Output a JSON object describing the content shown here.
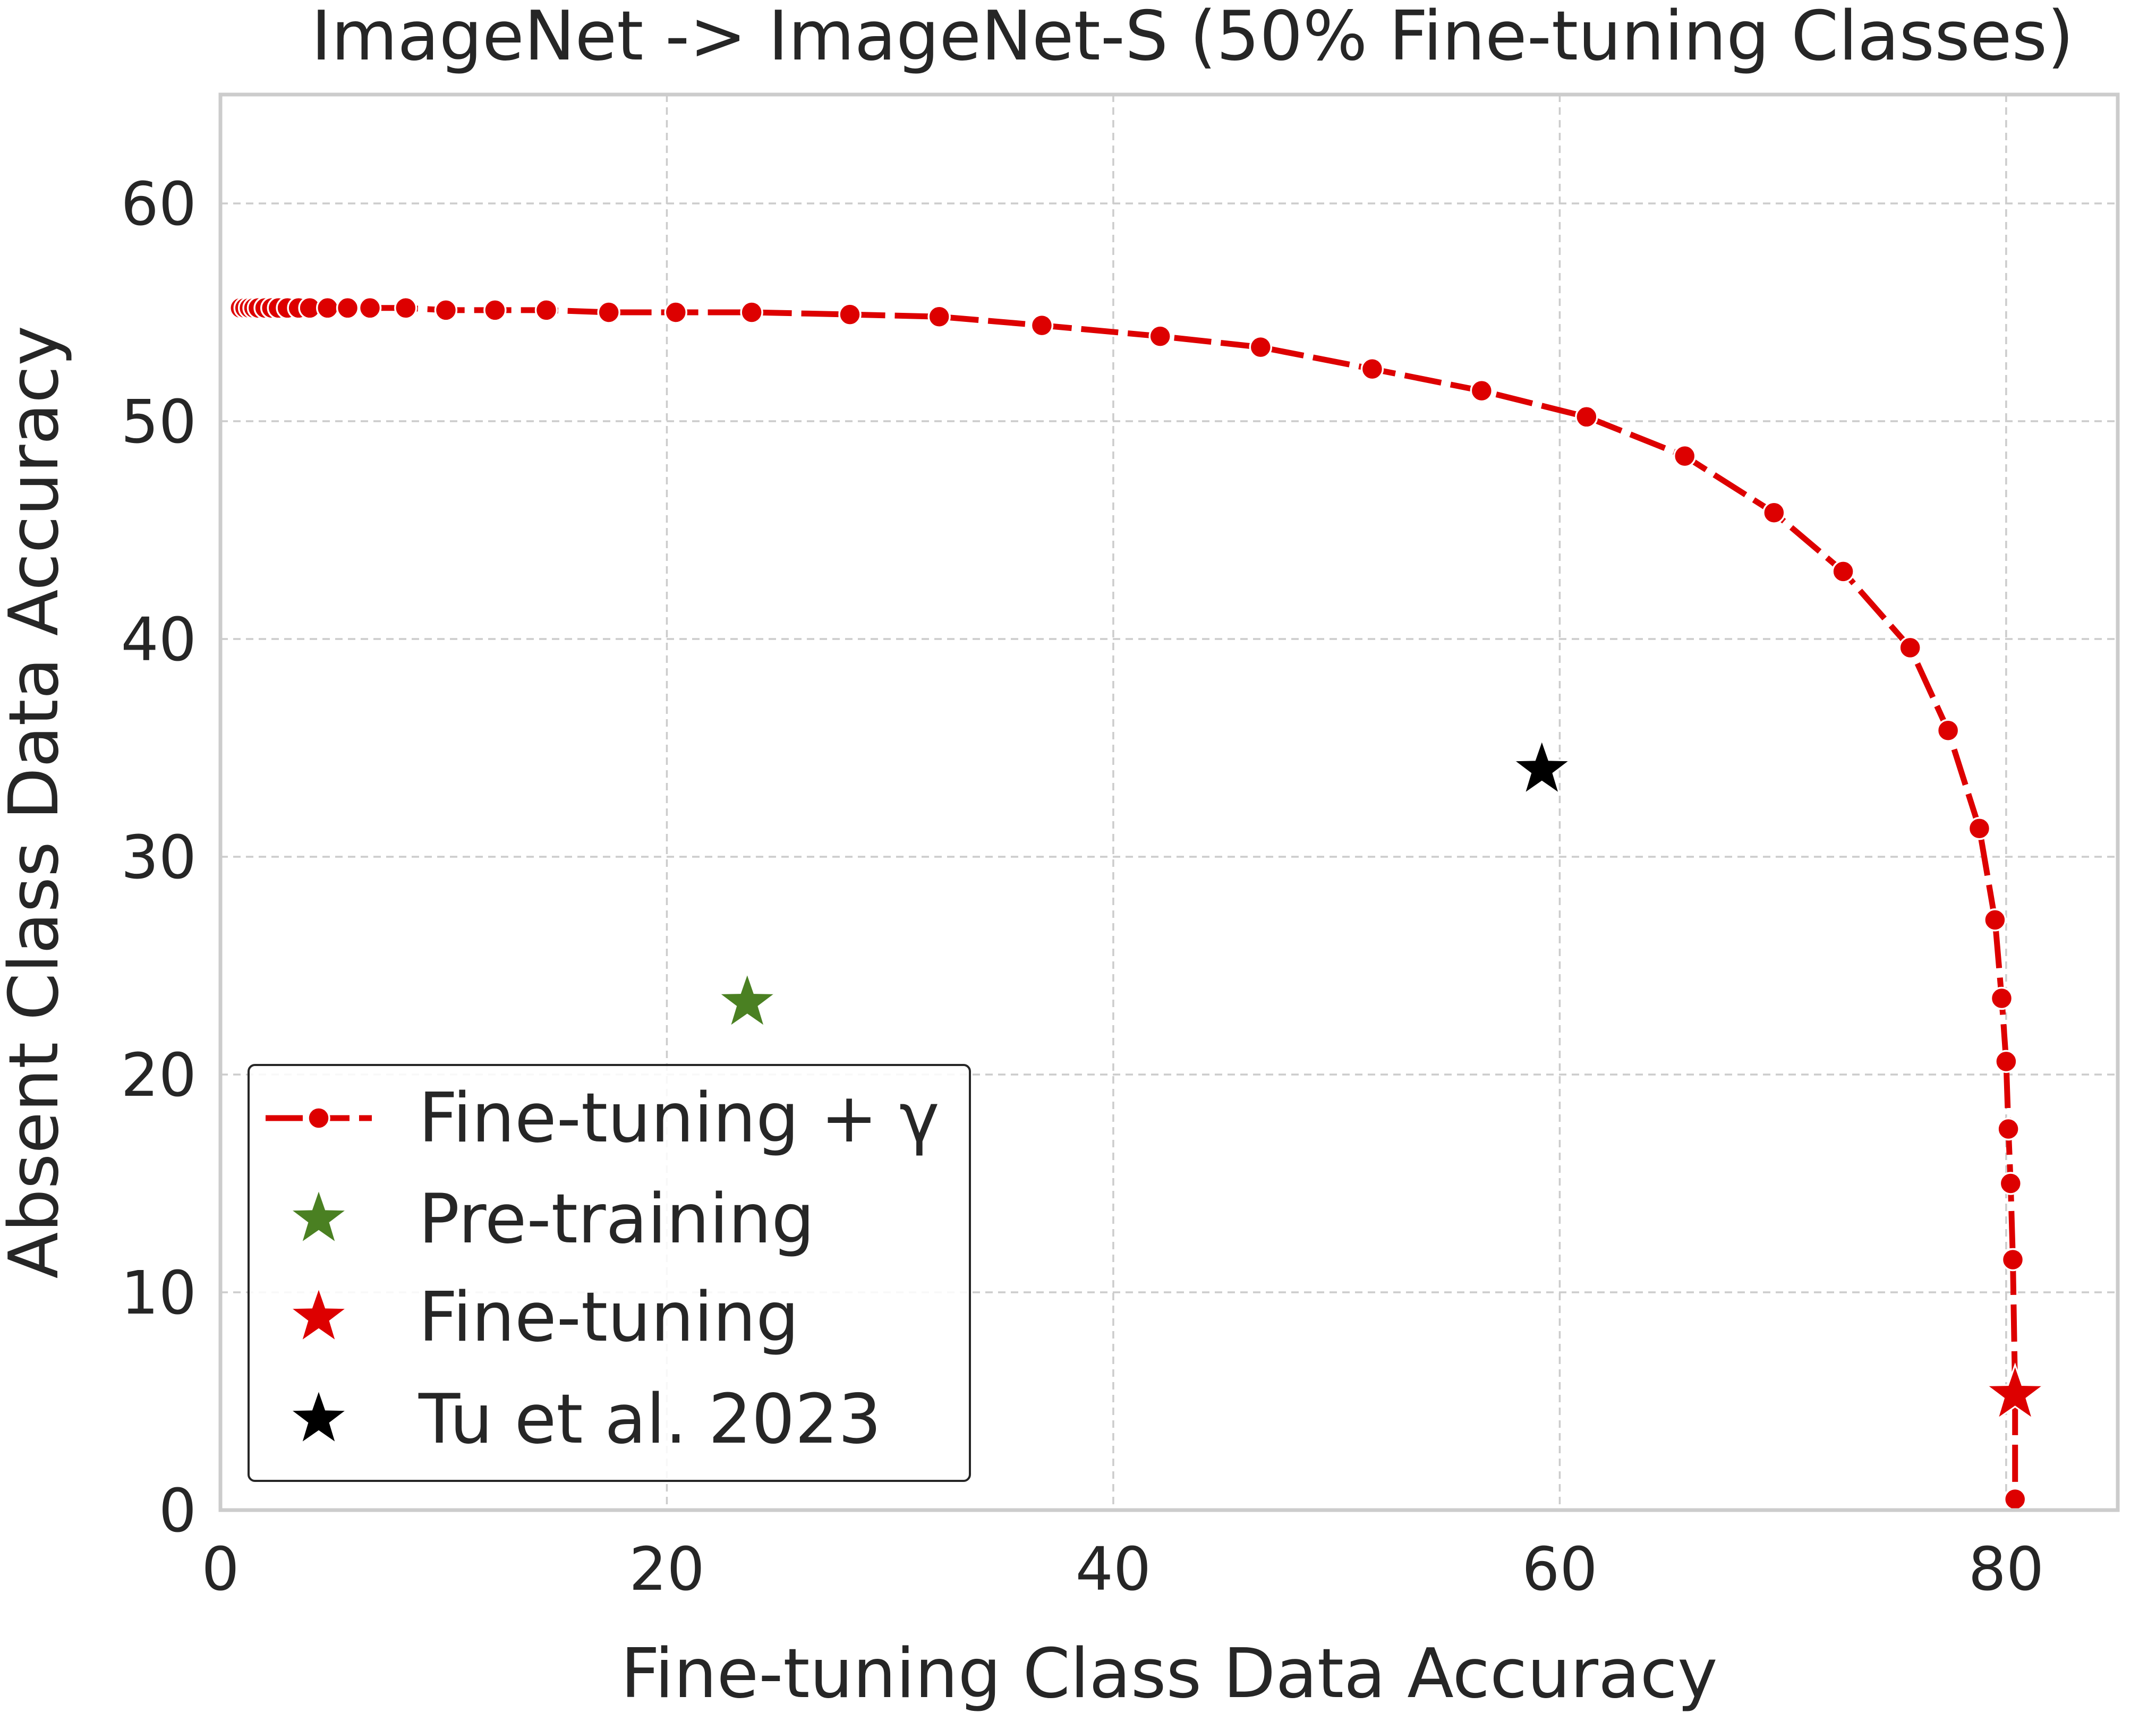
{
  "chart_data": {
    "type": "scatter",
    "title": "ImageNet -> ImageNet-S (50% Fine-tuning Classes)",
    "xlabel": "Fine-tuning Class Data Accuracy",
    "ylabel": "Absent Class Data Accuracy",
    "xlim": [
      0,
      85
    ],
    "ylim": [
      0,
      65
    ],
    "xticks": [
      0,
      20,
      40,
      60,
      80
    ],
    "yticks": [
      0,
      10,
      20,
      30,
      40,
      50,
      60
    ],
    "grid": true,
    "legend_position": "lower-left",
    "series": [
      {
        "name": "Fine-tuning + γ",
        "kind": "line-markers",
        "color": "#dd0000",
        "x": [
          0.9,
          1.1,
          1.3,
          1.5,
          1.7,
          2.0,
          2.3,
          2.6,
          3.0,
          3.5,
          4.0,
          4.8,
          5.7,
          6.7,
          8.3,
          10.1,
          12.3,
          14.6,
          17.4,
          20.4,
          23.8,
          28.2,
          32.2,
          36.8,
          42.1,
          46.6,
          51.6,
          56.5,
          61.2,
          65.6,
          69.6,
          72.7,
          75.7,
          77.4,
          78.8,
          79.5,
          79.8,
          80.0,
          80.1,
          80.2,
          80.3,
          80.4,
          80.4
        ],
        "y": [
          55.2,
          55.2,
          55.2,
          55.2,
          55.2,
          55.2,
          55.2,
          55.2,
          55.2,
          55.2,
          55.2,
          55.2,
          55.2,
          55.2,
          55.2,
          55.1,
          55.1,
          55.1,
          55.0,
          55.0,
          55.0,
          54.9,
          54.8,
          54.4,
          53.9,
          53.4,
          52.4,
          51.4,
          50.2,
          48.4,
          45.8,
          43.1,
          39.6,
          35.8,
          31.3,
          27.1,
          23.5,
          20.6,
          17.5,
          15.0,
          11.5,
          5.4,
          0.5
        ]
      },
      {
        "name": "Pre-training",
        "kind": "star",
        "color": "#4a8022",
        "x": [
          23.6
        ],
        "y": [
          23.3
        ]
      },
      {
        "name": "Fine-tuning",
        "kind": "star",
        "color": "#dd0000",
        "x": [
          80.4
        ],
        "y": [
          5.3
        ]
      },
      {
        "name": "Tu et al. 2023",
        "kind": "star",
        "color": "#000000",
        "x": [
          59.2
        ],
        "y": [
          34.0
        ]
      }
    ]
  }
}
